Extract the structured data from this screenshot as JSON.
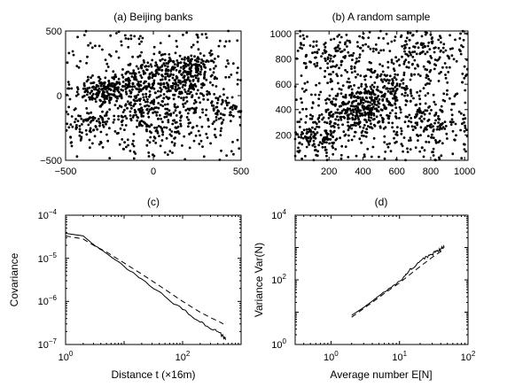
{
  "chart_data": [
    {
      "type": "scatter",
      "title": "(a) Beijing banks",
      "xlabel": "",
      "ylabel": "",
      "xlim": [
        -500,
        500
      ],
      "ylim": [
        -500,
        500
      ],
      "xticks": [
        -500,
        0,
        500
      ],
      "yticks": [
        -500,
        0,
        500
      ],
      "xtick_labels": [
        "−500",
        "0",
        "500"
      ],
      "ytick_labels": [
        "−500",
        "0",
        "500"
      ],
      "grid": false,
      "point_count_estimate": 1300,
      "clusters": [
        {
          "x": -300,
          "y": 30,
          "spread": 70,
          "n": 110
        },
        {
          "x": -150,
          "y": 80,
          "spread": 90,
          "n": 150
        },
        {
          "x": 150,
          "y": 80,
          "spread": 90,
          "n": 160
        },
        {
          "x": 240,
          "y": 220,
          "spread": 60,
          "n": 90
        },
        {
          "x": 40,
          "y": 220,
          "spread": 70,
          "n": 80
        },
        {
          "x": -60,
          "y": -120,
          "spread": 100,
          "n": 120
        },
        {
          "x": 80,
          "y": -250,
          "spread": 120,
          "n": 90
        },
        {
          "x": -380,
          "y": -200,
          "spread": 90,
          "n": 70
        },
        {
          "x": 380,
          "y": -100,
          "spread": 90,
          "n": 70
        }
      ],
      "background_points": 340
    },
    {
      "type": "scatter",
      "title": "(b) A random sample",
      "xlabel": "",
      "ylabel": "",
      "xlim": [
        0,
        1020
      ],
      "ylim": [
        0,
        1020
      ],
      "xticks": [
        200,
        400,
        600,
        800,
        1000
      ],
      "yticks": [
        200,
        400,
        600,
        800,
        1000
      ],
      "xtick_labels": [
        "200",
        "400",
        "600",
        "800",
        "1000"
      ],
      "ytick_labels": [
        "200",
        "400",
        "600",
        "800",
        "1000"
      ],
      "grid": false,
      "point_count_estimate": 1300,
      "clusters": [
        {
          "x": 350,
          "y": 380,
          "spread": 110,
          "n": 230
        },
        {
          "x": 500,
          "y": 520,
          "spread": 110,
          "n": 160
        },
        {
          "x": 120,
          "y": 180,
          "spread": 90,
          "n": 110
        },
        {
          "x": 800,
          "y": 300,
          "spread": 120,
          "n": 110
        },
        {
          "x": 720,
          "y": 880,
          "spread": 110,
          "n": 90
        },
        {
          "x": 250,
          "y": 820,
          "spread": 100,
          "n": 80
        }
      ],
      "background_points": 480
    },
    {
      "type": "line",
      "title": "(c)",
      "xlabel": "Distance t (×16m)",
      "ylabel": "Covariance",
      "xscale": "log",
      "yscale": "log",
      "xlim": [
        1,
        1000
      ],
      "ylim": [
        1e-07,
        0.0001
      ],
      "xticks": [
        1,
        100
      ],
      "yticks": [
        1e-07,
        1e-06,
        1e-05,
        0.0001
      ],
      "xtick_labels": [
        {
          "base": "10",
          "exp": "0"
        },
        {
          "base": "10",
          "exp": "2"
        }
      ],
      "ytick_labels": [
        {
          "base": "10",
          "exp": "−7"
        },
        {
          "base": "10",
          "exp": "−6"
        },
        {
          "base": "10",
          "exp": "−5"
        },
        {
          "base": "10",
          "exp": "−4"
        }
      ],
      "grid": false,
      "series": [
        {
          "style": "solid",
          "x": [
            1,
            2,
            3,
            5,
            10,
            20,
            50,
            100,
            200,
            300,
            400,
            500,
            550
          ],
          "y": [
            3.8e-05,
            3.3e-05,
            2.1e-05,
            1.3e-05,
            6.5e-06,
            3.3e-06,
            1.3e-06,
            6.5e-07,
            3.3e-07,
            2.3e-07,
            2e-07,
            1.5e-07,
            1.3e-07
          ]
        },
        {
          "style": "dashed",
          "x": [
            1,
            2,
            3,
            5,
            10,
            20,
            50,
            100,
            200,
            300,
            400,
            500
          ],
          "y": [
            3.3e-05,
            2.8e-05,
            2e-05,
            1.4e-05,
            7.8e-06,
            4.3e-06,
            1.9e-06,
            1e-06,
            5.6e-07,
            4.2e-07,
            3.5e-07,
            3e-07
          ]
        }
      ]
    },
    {
      "type": "line",
      "title": "(d)",
      "xlabel": "Average number E[N]",
      "ylabel": "Variance Var(N)",
      "xscale": "log",
      "yscale": "log",
      "xlim": [
        0.3,
        100
      ],
      "ylim": [
        1,
        10000
      ],
      "xticks": [
        1,
        10,
        100
      ],
      "yticks": [
        1,
        100,
        10000
      ],
      "xtick_labels": [
        {
          "base": "10",
          "exp": "0"
        },
        {
          "base": "10",
          "exp": "1"
        },
        {
          "base": "10",
          "exp": "2"
        }
      ],
      "ytick_labels": [
        {
          "base": "10",
          "exp": "0"
        },
        {
          "base": "10",
          "exp": "2"
        },
        {
          "base": "10",
          "exp": "4"
        }
      ],
      "grid": false,
      "series": [
        {
          "style": "solid",
          "x": [
            2,
            3,
            4,
            5,
            6,
            8,
            10,
            12,
            14,
            16,
            20,
            25,
            30,
            35,
            40,
            45
          ],
          "y": [
            8,
            14,
            22,
            32,
            42,
            65,
            90,
            130,
            200,
            230,
            380,
            520,
            620,
            780,
            900,
            1000
          ]
        },
        {
          "style": "dashed",
          "x": [
            2,
            3,
            4,
            6,
            8,
            10,
            15,
            20,
            30,
            40,
            45
          ],
          "y": [
            7,
            13,
            20,
            38,
            58,
            80,
            160,
            260,
            500,
            750,
            870
          ]
        }
      ]
    }
  ]
}
